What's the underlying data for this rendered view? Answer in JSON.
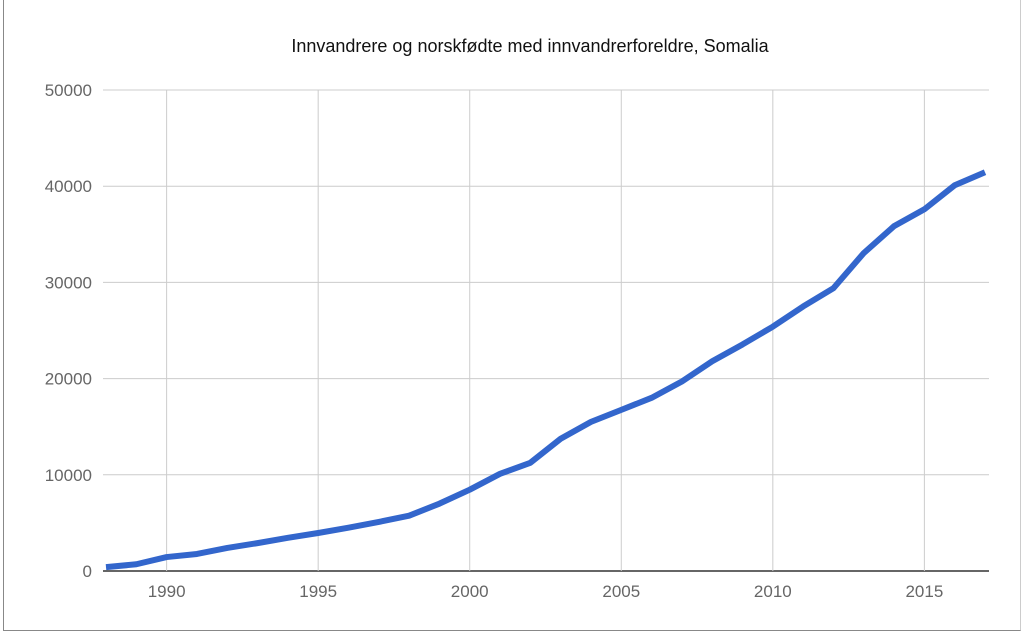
{
  "chart_data": {
    "type": "line",
    "title": "Innvandrere og norskfødte med innvandrerforeldre, Somalia",
    "xlabel": "",
    "ylabel": "",
    "xlim": [
      1988,
      2017
    ],
    "ylim": [
      0,
      50000
    ],
    "grid": true,
    "legend": "none",
    "x_ticks": [
      1990,
      1995,
      2000,
      2005,
      2010,
      2015
    ],
    "y_ticks": [
      0,
      10000,
      20000,
      30000,
      40000,
      50000
    ],
    "series": [
      {
        "name": "Somalia",
        "color": "#3366cc",
        "x": [
          1988,
          1989,
          1990,
          1991,
          1992,
          1993,
          1994,
          1995,
          1996,
          1997,
          1998,
          1999,
          2000,
          2001,
          2002,
          2003,
          2004,
          2005,
          2006,
          2007,
          2008,
          2009,
          2010,
          2011,
          2012,
          2013,
          2014,
          2015,
          2016,
          2017
        ],
        "values": [
          400,
          700,
          1450,
          1770,
          2400,
          2900,
          3450,
          3950,
          4500,
          5100,
          5750,
          7000,
          8450,
          10100,
          11250,
          13750,
          15500,
          16750,
          18000,
          19700,
          21800,
          23550,
          25400,
          27500,
          29400,
          33050,
          35850,
          37600,
          40100,
          41450
        ]
      }
    ]
  }
}
